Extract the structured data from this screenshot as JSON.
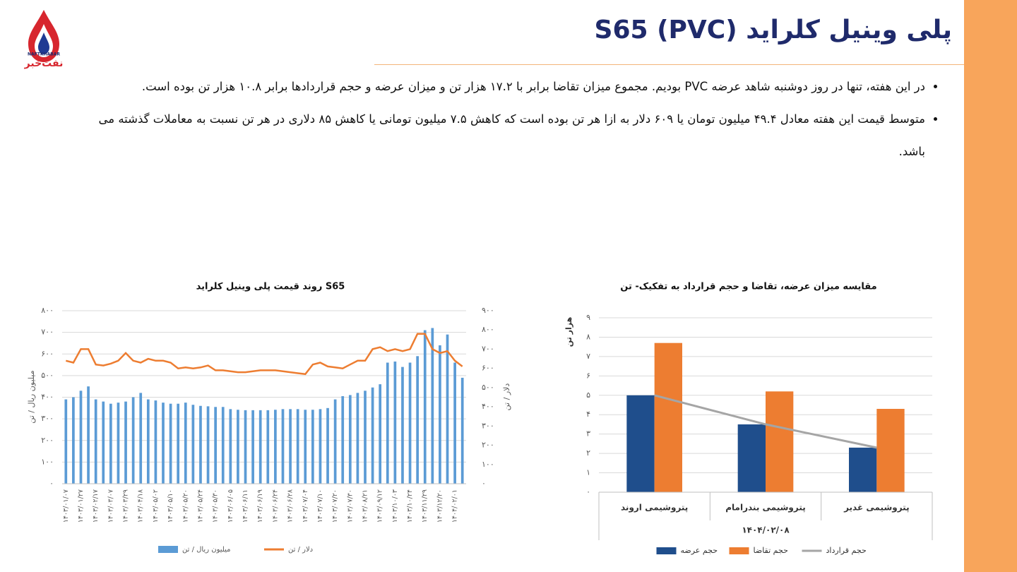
{
  "logo": {
    "latin": "NAFTKHABAR",
    "persian": "نفت‌خبر"
  },
  "header": {
    "title": "پلی وینیل کلراید S65 (PVC)"
  },
  "bullets": [
    "در این هفته، تنها در روز دوشنبه شاهد عرضه PVC بودیم. مجموع میزان تقاضا برابر با ۱۷.۲ هزار تن و میزان عرضه و حجم قراردادها برابر ۱۰.۸ هزار تن بوده است.",
    "متوسط قیمت این هفته معادل ۴۹.۴ میلیون تومان یا ۶۰۹ دلار به ازا هر تن بوده است که کاهش ۷.۵ میلیون تومانی یا کاهش ۸۵ دلاری در هر تن نسبت به معاملات گذشته می باشد."
  ],
  "chart_data": [
    {
      "type": "bar",
      "title": "روند قیمت پلی وینیل کلراید S65",
      "y_label": "میلیون ریال / تن",
      "y2_label": "دلار / تن",
      "categories": [
        "۱۴۰۳/۰۱/۰۷",
        null,
        "۱۴۰۳/۰۱/۲۷",
        null,
        "۱۴۰۳/۰۲/۱۷",
        null,
        "۱۴۰۳/۰۳/۰۷",
        null,
        "۱۴۰۳/۰۳/۲۹",
        null,
        "۱۴۰۳/۰۴/۱۸",
        null,
        "۱۴۰۳/۰۵/۰۲",
        null,
        "۱۴۰۳/۰۵/۱۰",
        null,
        "۱۴۰۳/۰۵/۲۰",
        null,
        "۱۴۰۳/۰۵/۲۴",
        null,
        "۱۴۰۳/۰۵/۳۰",
        null,
        "۱۴۰۳/۰۶/۰۵",
        null,
        "۱۴۰۳/۰۶/۱۱",
        null,
        "۱۴۰۳/۰۶/۱۹",
        null,
        "۱۴۰۳/۰۶/۲۴",
        null,
        "۱۴۰۳/۰۶/۲۸",
        null,
        "۱۴۰۳/۰۷/۰۴",
        null,
        "۱۴۰۳/۰۷/۱۰",
        null,
        "۱۴۰۳/۰۷/۲۰",
        null,
        "۱۴۰۳/۰۷/۳۰",
        null,
        "۱۴۰۳/۰۸/۲۱",
        null,
        "۱۴۰۳/۰۹/۱۲",
        null,
        "۱۴۰۳/۱۰/۰۳",
        null,
        "۱۴۰۳/۱۰/۲۴",
        null,
        "۱۴۰۳/۱۱/۲۹",
        null,
        "۱۴۰۳/۱۲/۲۰",
        null,
        "۱۴۰۴/۰۲/۰۱",
        null
      ],
      "ylim": [
        0,
        800
      ],
      "yticks": [
        {
          "value": 0,
          "label": "۰"
        },
        {
          "value": 100,
          "label": "۱۰۰"
        },
        {
          "value": 200,
          "label": "۲۰۰"
        },
        {
          "value": 300,
          "label": "۳۰۰"
        },
        {
          "value": 400,
          "label": "۴۰۰"
        },
        {
          "value": 500,
          "label": "۵۰۰"
        },
        {
          "value": 600,
          "label": "۶۰۰"
        },
        {
          "value": 700,
          "label": "۷۰۰"
        },
        {
          "value": 800,
          "label": "۸۰۰"
        }
      ],
      "y2lim": [
        0,
        900
      ],
      "y2ticks": [
        {
          "value": 0,
          "label": "۰"
        },
        {
          "value": 100,
          "label": "۱۰۰"
        },
        {
          "value": 200,
          "label": "۲۰۰"
        },
        {
          "value": 300,
          "label": "۳۰۰"
        },
        {
          "value": 400,
          "label": "۴۰۰"
        },
        {
          "value": 500,
          "label": "۵۰۰"
        },
        {
          "value": 600,
          "label": "۶۰۰"
        },
        {
          "value": 700,
          "label": "۷۰۰"
        },
        {
          "value": 800,
          "label": "۸۰۰"
        },
        {
          "value": 900,
          "label": "۹۰۰"
        }
      ],
      "grid": true,
      "legend": "bottom",
      "series": [
        {
          "name": "میلیون ریال / تن",
          "type": "bar",
          "color": "#5b9bd5",
          "values": [
            390,
            400,
            430,
            450,
            390,
            380,
            370,
            375,
            380,
            400,
            420,
            390,
            385,
            375,
            370,
            370,
            375,
            365,
            360,
            358,
            355,
            355,
            345,
            342,
            340,
            340,
            340,
            340,
            342,
            345,
            345,
            345,
            342,
            342,
            345,
            350,
            390,
            405,
            410,
            420,
            430,
            445,
            460,
            560,
            565,
            540,
            560,
            590,
            710,
            720,
            640,
            690,
            560,
            490
          ]
        },
        {
          "name": "دلار / تن",
          "type": "line",
          "axis": "y2",
          "color": "#ed7d31",
          "values": [
            640,
            630,
            700,
            700,
            620,
            615,
            625,
            640,
            680,
            640,
            630,
            650,
            640,
            640,
            630,
            600,
            605,
            600,
            605,
            615,
            590,
            590,
            585,
            580,
            580,
            585,
            590,
            590,
            590,
            585,
            580,
            575,
            570,
            620,
            630,
            610,
            605,
            600,
            620,
            640,
            640,
            700,
            710,
            690,
            700,
            690,
            700,
            780,
            780,
            700,
            680,
            690,
            640,
            610
          ]
        }
      ]
    },
    {
      "type": "bar",
      "title": "مقایسه میزان عرضه، تقاضا و حجم قرارداد به تفکیک- تن",
      "y_label": "هزار تن",
      "x_label": "۱۴۰۴/۰۲/۰۸",
      "categories": [
        "پتروشیمی اروند",
        "پتروشیمی بندرامام",
        "پتروشیمی غدیر"
      ],
      "ylim": [
        0,
        9
      ],
      "yticks": [
        {
          "value": 0,
          "label": "۰"
        },
        {
          "value": 1,
          "label": "۱"
        },
        {
          "value": 2,
          "label": "۲"
        },
        {
          "value": 3,
          "label": "۳"
        },
        {
          "value": 4,
          "label": "۴"
        },
        {
          "value": 5,
          "label": "۵"
        },
        {
          "value": 6,
          "label": "۶"
        },
        {
          "value": 7,
          "label": "۷"
        },
        {
          "value": 8,
          "label": "۸"
        },
        {
          "value": 9,
          "label": "۹"
        }
      ],
      "grid": true,
      "legend": "bottom",
      "series": [
        {
          "name": "حجم عرضه",
          "type": "bar",
          "color": "#1f4e8c",
          "values": [
            5,
            3.5,
            2.3
          ]
        },
        {
          "name": "حجم تقاضا",
          "type": "bar",
          "color": "#ed7d31",
          "values": [
            7.7,
            5.2,
            4.3
          ]
        },
        {
          "name": "حجم قرارداد",
          "type": "line",
          "color": "#a5a5a5",
          "values": [
            5,
            3.5,
            2.3
          ]
        }
      ]
    }
  ]
}
